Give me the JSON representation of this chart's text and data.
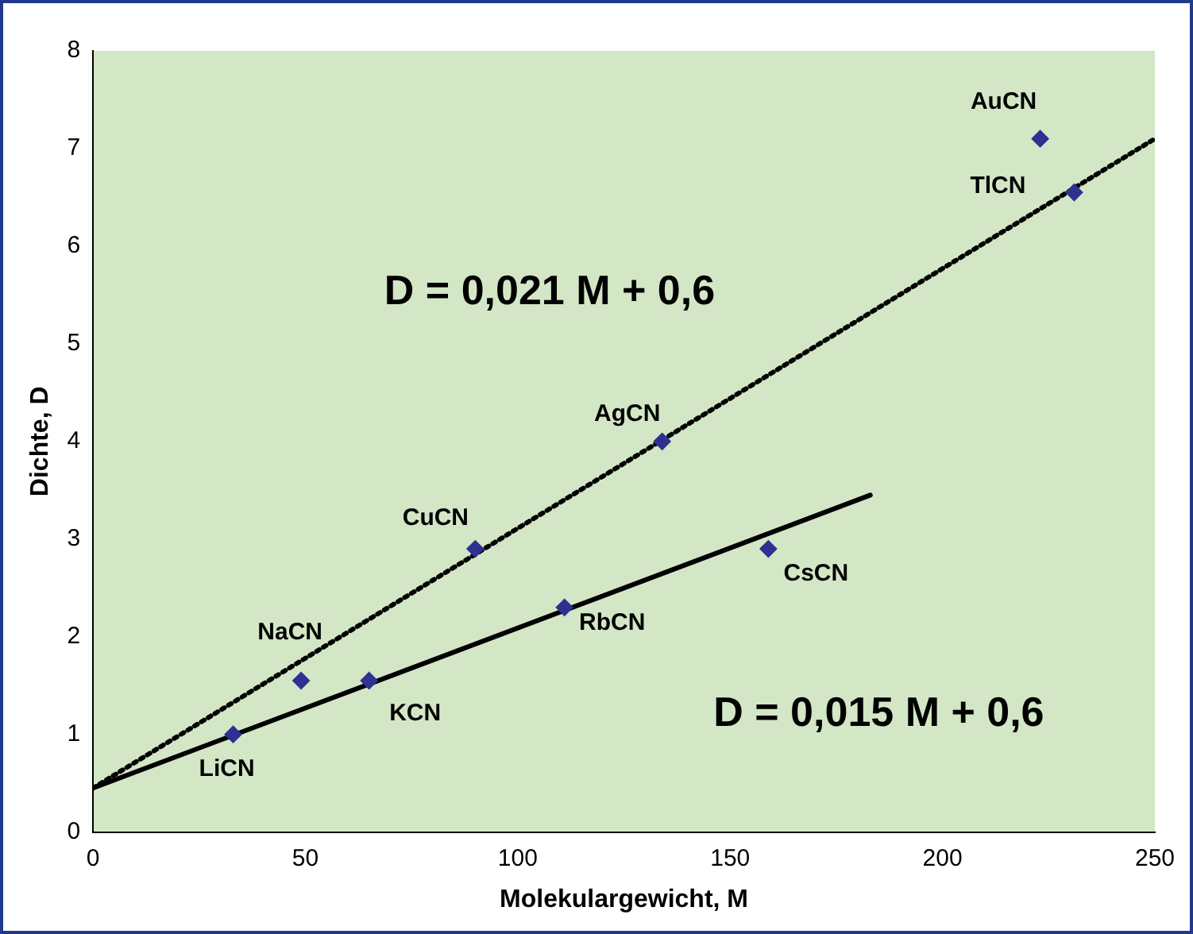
{
  "chart_data": {
    "type": "scatter",
    "xlabel": "Molekulargewicht, M",
    "ylabel": "Dichte, D",
    "xlim": [
      0,
      250
    ],
    "xticks": [
      0,
      50,
      100,
      150,
      200,
      250
    ],
    "ylim": [
      0,
      8
    ],
    "yticks": [
      0,
      1,
      2,
      3,
      4,
      5,
      6,
      7,
      8
    ],
    "grid": false,
    "legend": false,
    "marker": "diamond",
    "series": [
      {
        "color": "#2e3192",
        "x": [
          33,
          49,
          65,
          90,
          111,
          134,
          159,
          223,
          231
        ],
        "values": [
          1.0,
          1.55,
          1.55,
          2.9,
          2.3,
          4.0,
          2.9,
          7.1,
          6.55
        ]
      },
      {
        "type": "line",
        "color": "#000000",
        "line_style": "dotted",
        "marker": "none",
        "x": [
          0,
          250
        ],
        "values": [
          0.45,
          7.1
        ]
      },
      {
        "type": "line",
        "color": "#000000",
        "line_style": "solid",
        "marker": "none",
        "x": [
          0,
          183
        ],
        "values": [
          0.45,
          3.45
        ]
      }
    ],
    "annotations": [
      {
        "text": "LiCN",
        "x": 33,
        "y": 1.0
      },
      {
        "text": "NaCN",
        "x": 49,
        "y": 1.55
      },
      {
        "text": "KCN",
        "x": 65,
        "y": 1.55
      },
      {
        "text": "CuCN",
        "x": 90,
        "y": 2.9
      },
      {
        "text": "RbCN",
        "x": 111,
        "y": 2.3
      },
      {
        "text": "AgCN",
        "x": 134,
        "y": 4.0
      },
      {
        "text": "CsCN",
        "x": 159,
        "y": 2.9
      },
      {
        "text": "AuCN",
        "x": 223,
        "y": 7.1
      },
      {
        "text": "TlCN",
        "x": 231,
        "y": 6.55
      },
      "D = 0,021 M + 0,6",
      "D = 0,015 M + 0,6"
    ]
  }
}
